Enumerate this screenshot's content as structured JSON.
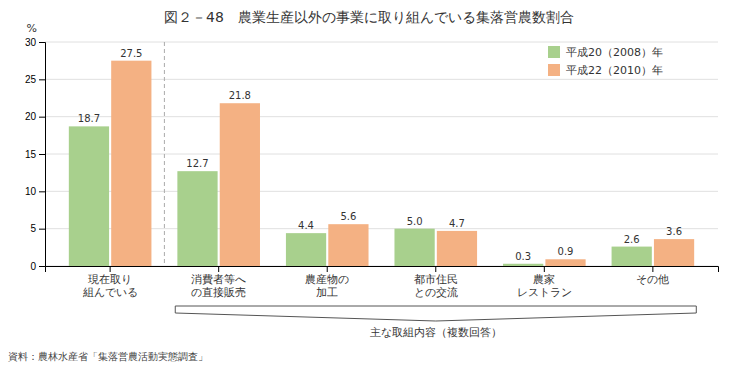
{
  "chart_data": {
    "type": "bar",
    "title": "図２－48　農業生産以外の事業に取り組んでいる集落営農数割合",
    "categories": [
      "現在取り\n組んでいる",
      "消費者等へ\nの直接販売",
      "農産物の\n加工",
      "都市住民\nとの交流",
      "農家\nレストラン",
      "その他"
    ],
    "series": [
      {
        "name": "平成20（2008）年",
        "color": "#a8d08d",
        "values": [
          18.7,
          12.7,
          4.4,
          5.0,
          0.3,
          2.6
        ],
        "value_labels": [
          "18.7",
          "12.7",
          "4.4",
          "5.0",
          "0.3",
          "2.6"
        ]
      },
      {
        "name": "平成22（2010）年",
        "color": "#f4b183",
        "values": [
          27.5,
          21.8,
          5.6,
          4.7,
          0.9,
          3.6
        ],
        "value_labels": [
          "27.5",
          "21.8",
          "5.6",
          "4.7",
          "0.9",
          "3.6"
        ]
      }
    ],
    "ylabel": "%",
    "ylim": [
      0,
      30
    ],
    "yticks": [
      0,
      5,
      10,
      15,
      20,
      25,
      30
    ],
    "grid": true,
    "legend": "upper right",
    "data_labels": true,
    "annotation": "主な取組内容（複数回答）",
    "source": "資料：農林水産省「集落営農活動実態調査」"
  }
}
